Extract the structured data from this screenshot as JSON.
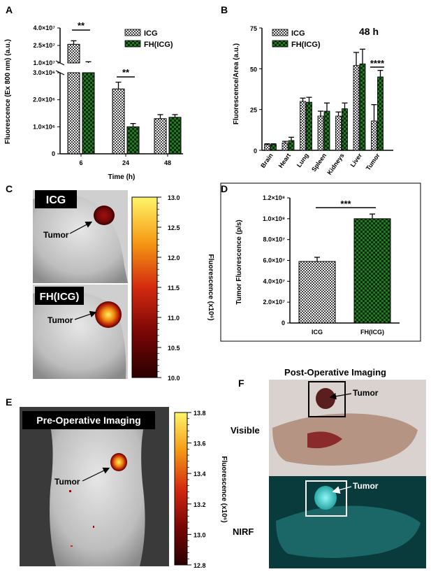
{
  "panel_labels": {
    "a": "A",
    "b": "B",
    "c": "C",
    "d": "D",
    "e": "E",
    "f": "F"
  },
  "legend": {
    "icg": "ICG",
    "fh": "FH(ICG)"
  },
  "colors": {
    "icg_fill": "#f0f0f0",
    "icg_hatch": "#444444",
    "fh_fill": "#1f6b1f",
    "fh_check": "#0b2a0b"
  },
  "chart_data": [
    {
      "id": "A",
      "type": "bar",
      "ylabel": "Fluorescence (Ex 800 nm) (a.u.)",
      "xlabel": "Time (h)",
      "categories": [
        "6",
        "24",
        "48"
      ],
      "series": [
        {
          "name": "ICG",
          "values": [
            26000000,
            2400000,
            1300000
          ],
          "errors": [
            3000000,
            250000,
            150000
          ]
        },
        {
          "name": "FH(ICG)",
          "values": [
            10000000,
            1000000,
            1350000
          ],
          "errors": [
            1000000,
            120000,
            100000
          ]
        }
      ],
      "axis_breaks": "broken y-axis: lower 0 to 3.0x10^6, upper 1.0x10^7 to 4.0x10^7",
      "yticks_lower": [
        "0",
        "1.0×10⁶",
        "2.0×10⁶",
        "3.0×10⁶"
      ],
      "yticks_upper": [
        "1.0×10⁷",
        "2.5×10⁷",
        "4.0×10⁷"
      ],
      "significance": [
        {
          "category": "6",
          "label": "**"
        },
        {
          "category": "24",
          "label": "**"
        }
      ]
    },
    {
      "id": "B",
      "type": "bar",
      "title": "48 h",
      "ylabel": "Fluorescence/Area (a.u.)",
      "categories": [
        "Brain",
        "Heart",
        "Lung",
        "Spleen",
        "Kidneys",
        "Liver",
        "Tumor"
      ],
      "series": [
        {
          "name": "ICG",
          "values": [
            3.5,
            4.5,
            30,
            21,
            21,
            52,
            18
          ],
          "errors": [
            0.5,
            1,
            2,
            3,
            2.5,
            8,
            10
          ]
        },
        {
          "name": "FH(ICG)",
          "values": [
            3.5,
            6,
            29.5,
            24,
            25.5,
            53,
            45
          ],
          "errors": [
            0.5,
            2,
            3,
            5,
            3.5,
            9,
            4
          ]
        }
      ],
      "ylim": [
        0,
        75
      ],
      "yticks": [
        "0",
        "25",
        "50",
        "75"
      ],
      "significance": [
        {
          "category": "Tumor",
          "label": "****"
        }
      ]
    },
    {
      "id": "D",
      "type": "bar",
      "ylabel": "Tumor Fluorescence (p/s)",
      "categories": [
        "ICG",
        "FH(ICG)"
      ],
      "values": [
        59000000,
        100000000
      ],
      "errors": [
        4000000,
        4500000
      ],
      "ylim": [
        0,
        120000000
      ],
      "yticks": [
        "0",
        "2.0×10⁷",
        "4.0×10⁷",
        "6.0×10⁷",
        "8.0×10⁷",
        "1.0×10⁸",
        "1.2×10⁸"
      ],
      "significance": [
        {
          "label": "***"
        }
      ]
    },
    {
      "id": "C-colorbar",
      "type": "heatmap",
      "label": "Fluorescence (x10⁶)",
      "range": [
        10.0,
        13.0
      ],
      "ticks": [
        "13.0",
        "12.5",
        "12.0",
        "11.5",
        "11.0",
        "10.5",
        "10.0"
      ]
    },
    {
      "id": "E-colorbar",
      "type": "heatmap",
      "label": "Fluorescence (x10⁶)",
      "range": [
        12.8,
        13.8
      ],
      "ticks": [
        "13.8",
        "13.6",
        "13.4",
        "13.2",
        "13.0",
        "12.8"
      ]
    }
  ],
  "panel_c": {
    "top_label": "ICG",
    "bottom_label": "FH(ICG)",
    "tumor_label": "Tumor"
  },
  "panel_e": {
    "title": "Pre-Operative Imaging",
    "tumor_label": "Tumor"
  },
  "panel_f": {
    "title": "Post-Operative Imaging",
    "visible_label": "Visible",
    "nirf_label": "NIRF",
    "tumor_label": "Tumor"
  }
}
